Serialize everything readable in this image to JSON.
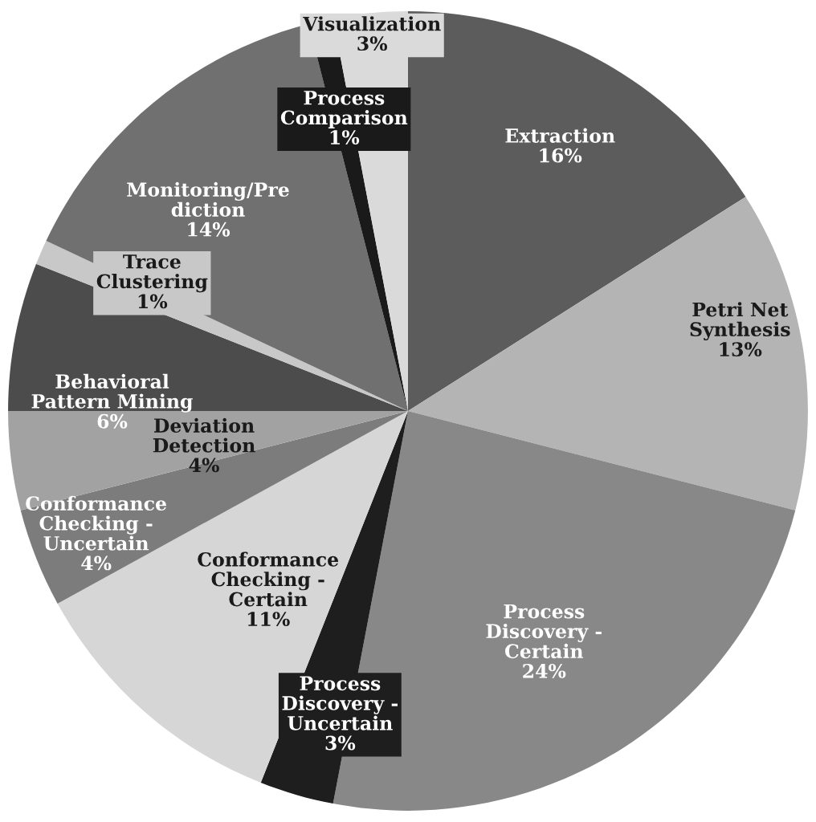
{
  "chart_data": {
    "type": "pie",
    "categories": [
      "Extraction",
      "Petri Net\nSynthesis",
      "Process\nDiscovery -\nCertain",
      "Process\nDiscovery -\nUncertain",
      "Conformance\nChecking -\nCertain",
      "Conformance\nChecking -\nUncertain",
      "Deviation\nDetection",
      "Behavioral\nPattern Mining",
      "Trace\nClustering",
      "Monitoring/Pre\ndiction",
      "Process\nComparison",
      "Visualization"
    ],
    "values": [
      16,
      13,
      24,
      3,
      11,
      4,
      4,
      6,
      1,
      14,
      1,
      3
    ],
    "value_labels": [
      "16%",
      "13%",
      "24%",
      "3%",
      "11%",
      "4%",
      "4%",
      "6%",
      "1%",
      "14%",
      "1%",
      "3%"
    ],
    "colors": [
      "#5c5c5c",
      "#b4b4b4",
      "#888888",
      "#1e1e1e",
      "#d6d6d6",
      "#7c7c7c",
      "#a2a2a2",
      "#4c4c4c",
      "#c8c8c8",
      "#707070",
      "#1a1a1a",
      "#dadada"
    ]
  }
}
